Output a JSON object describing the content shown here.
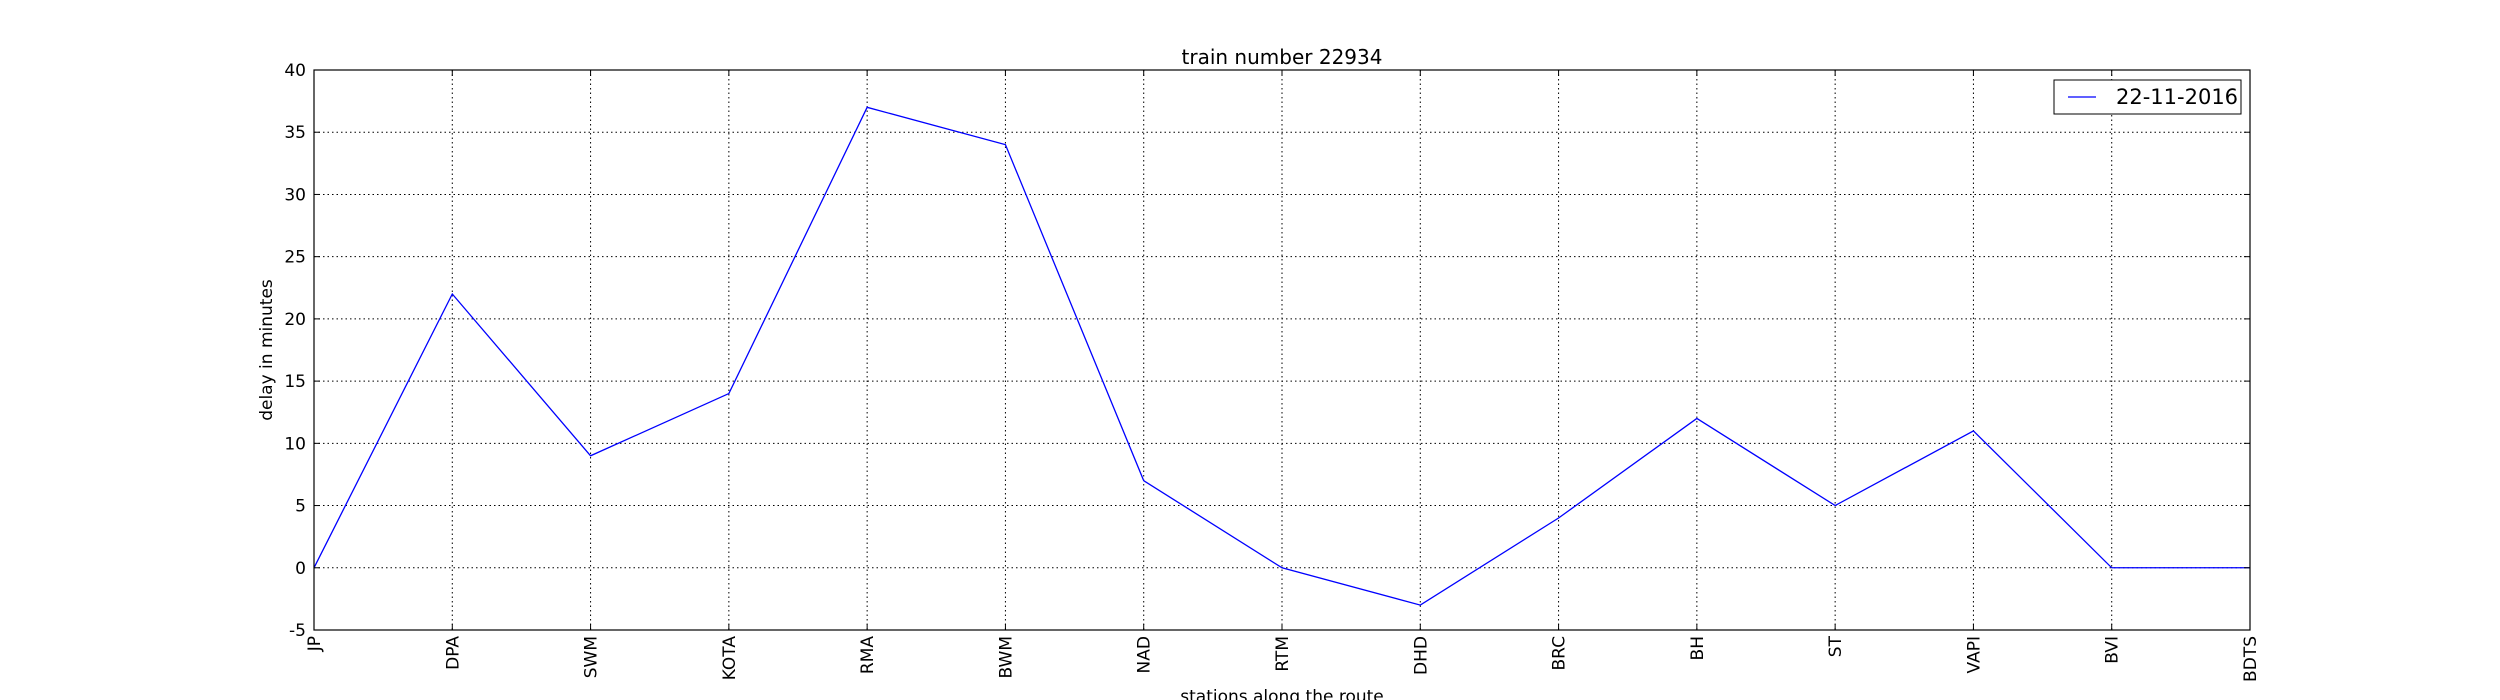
{
  "chart_data": {
    "type": "line",
    "title": "train number 22934",
    "xlabel": "stations along the route",
    "ylabel": "delay in minutes",
    "categories": [
      "JP",
      "DPA",
      "SWM",
      "KOTA",
      "RMA",
      "BWM",
      "NAD",
      "RTM",
      "DHD",
      "BRC",
      "BH",
      "ST",
      "VAPI",
      "BVI",
      "BDTS"
    ],
    "series": [
      {
        "name": "22-11-2016",
        "color": "#0000ff",
        "values": [
          0,
          22,
          9,
          14,
          37,
          34,
          7,
          0,
          -3,
          4,
          12,
          5,
          11,
          0,
          0
        ]
      }
    ],
    "ylim": [
      -5,
      40
    ],
    "yticks": [
      -5,
      0,
      5,
      10,
      15,
      20,
      25,
      30,
      35,
      40
    ],
    "grid": true,
    "legend_position": "top-right"
  }
}
